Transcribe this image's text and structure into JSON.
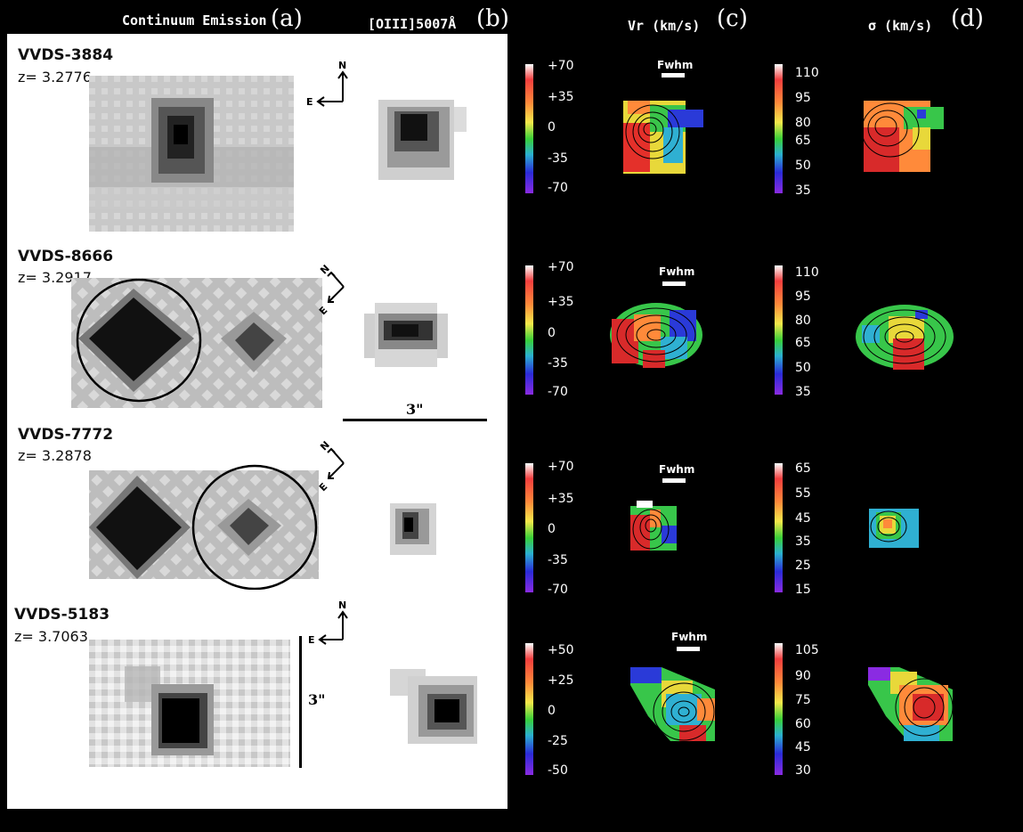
{
  "headers": {
    "a_title": "Continuum Emission",
    "a_letter": "(a)",
    "b_title": "[OIII]5007Å",
    "b_letter": "(b)",
    "c_title": "Vr (km/s)",
    "c_letter": "(c)",
    "d_title": "σ (km/s)",
    "d_letter": "(d)"
  },
  "compass": {
    "north": "N",
    "east": "E"
  },
  "fwhm_label": "Fwhm",
  "scale_bar_label": "3\"",
  "galaxies": [
    {
      "name": "VVDS-3884",
      "z": "z= 3.2776",
      "vr_ticks": [
        "+70",
        "+35",
        "0",
        "-35",
        "-70"
      ],
      "sigma_ticks": [
        "110",
        "95",
        "80",
        "65",
        "50",
        "35"
      ]
    },
    {
      "name": "VVDS-8666",
      "z": "z= 3.2917",
      "vr_ticks": [
        "+70",
        "+35",
        "0",
        "-35",
        "-70"
      ],
      "sigma_ticks": [
        "110",
        "95",
        "80",
        "65",
        "50",
        "35"
      ]
    },
    {
      "name": "VVDS-7772",
      "z": "z= 3.2878",
      "vr_ticks": [
        "+70",
        "+35",
        "0",
        "-35",
        "-70"
      ],
      "sigma_ticks": [
        "65",
        "55",
        "45",
        "35",
        "25",
        "15"
      ]
    },
    {
      "name": "VVDS-5183",
      "z": "z= 3.7063",
      "vr_ticks": [
        "+50",
        "+25",
        "0",
        "-25",
        "-50"
      ],
      "sigma_ticks": [
        "105",
        "90",
        "75",
        "60",
        "45",
        "30"
      ]
    }
  ],
  "colors": {
    "background": "#000000",
    "panel": "#ffffff"
  }
}
